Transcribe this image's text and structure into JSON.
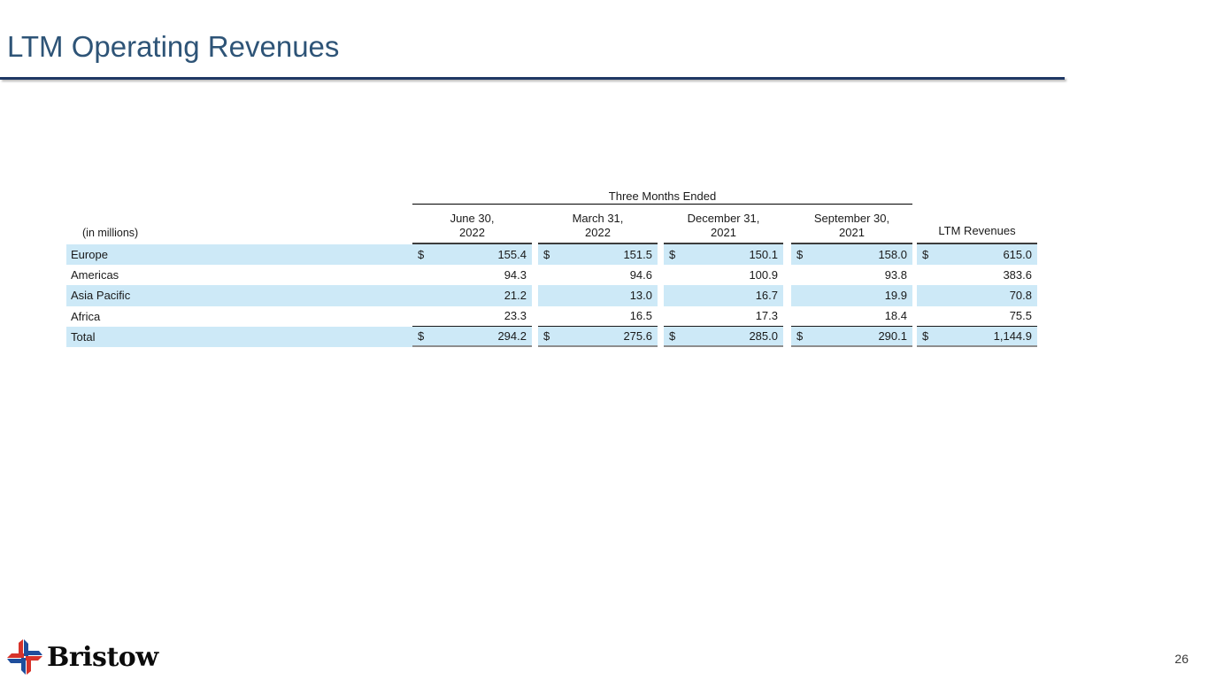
{
  "slide": {
    "title": "LTM Operating Revenues",
    "page_number": "26"
  },
  "footer": {
    "logo_text": "Bristow",
    "logo_icon": "bristow-pinwheel-icon",
    "logo_colors": {
      "red": "#D7332A",
      "blue": "#1F4E9C"
    }
  },
  "table": {
    "units_label": "(in millions)",
    "group_header": "Three Months Ended",
    "column_headers": [
      {
        "line1": "June 30,",
        "line2": "2022"
      },
      {
        "line1": "March 31,",
        "line2": "2022"
      },
      {
        "line1": "December 31,",
        "line2": "2021"
      },
      {
        "line1": "September 30,",
        "line2": "2021"
      }
    ],
    "ltm_header": "LTM Revenues",
    "currency_symbol": "$",
    "colors": {
      "row_highlight": "#CDE9F7",
      "title_blue": "#2E5477",
      "rule_navy": "#1F3864"
    },
    "rows": [
      {
        "label": "Europe",
        "dollar_sign": true,
        "highlighted": true,
        "is_total": false,
        "values": [
          "155.4",
          "151.5",
          "150.1",
          "158.0",
          "615.0"
        ]
      },
      {
        "label": "Americas",
        "dollar_sign": false,
        "highlighted": false,
        "is_total": false,
        "values": [
          "94.3",
          "94.6",
          "100.9",
          "93.8",
          "383.6"
        ]
      },
      {
        "label": "Asia Pacific",
        "dollar_sign": false,
        "highlighted": true,
        "is_total": false,
        "values": [
          "21.2",
          "13.0",
          "16.7",
          "19.9",
          "70.8"
        ]
      },
      {
        "label": "Africa",
        "dollar_sign": false,
        "highlighted": false,
        "is_total": false,
        "values": [
          "23.3",
          "16.5",
          "17.3",
          "18.4",
          "75.5"
        ]
      },
      {
        "label": "Total",
        "dollar_sign": true,
        "highlighted": true,
        "is_total": true,
        "values": [
          "294.2",
          "275.6",
          "285.0",
          "290.1",
          "1,144.9"
        ]
      }
    ]
  },
  "chart_data": {
    "type": "table",
    "title": "LTM Operating Revenues",
    "units": "in millions",
    "columns": [
      "June 30, 2022",
      "March 31, 2022",
      "December 31, 2021",
      "September 30, 2021",
      "LTM Revenues"
    ],
    "rows": [
      {
        "region": "Europe",
        "values": [
          155.4,
          151.5,
          150.1,
          158.0,
          615.0
        ]
      },
      {
        "region": "Americas",
        "values": [
          94.3,
          94.6,
          100.9,
          93.8,
          383.6
        ]
      },
      {
        "region": "Asia Pacific",
        "values": [
          21.2,
          13.0,
          16.7,
          19.9,
          70.8
        ]
      },
      {
        "region": "Africa",
        "values": [
          23.3,
          16.5,
          17.3,
          18.4,
          75.5
        ]
      },
      {
        "region": "Total",
        "values": [
          294.2,
          275.6,
          285.0,
          290.1,
          1144.9
        ]
      }
    ]
  }
}
